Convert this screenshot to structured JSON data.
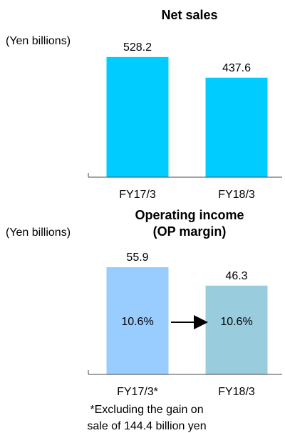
{
  "chart_data": [
    {
      "type": "bar",
      "title": "Net sales",
      "ylabel": "(Yen billions)",
      "categories": [
        "FY17/3",
        "FY18/3"
      ],
      "values": [
        528.2,
        437.6
      ],
      "colors": [
        "#00ccff",
        "#00ccff"
      ],
      "ylim": [
        0,
        600
      ]
    },
    {
      "type": "bar",
      "title": "Operating income",
      "subtitle": "(OP margin)",
      "ylabel": "(Yen billions)",
      "categories": [
        "FY17/3*",
        "FY18/3"
      ],
      "values": [
        55.9,
        46.3
      ],
      "margins": [
        10.6,
        10.6
      ],
      "margin_labels": [
        "10.6%",
        "10.6%"
      ],
      "colors": [
        "#99ccff",
        "#99ccdd"
      ],
      "ylim": [
        0,
        60
      ],
      "note": [
        "*Excluding the gain on",
        "sale of 144.4 billion yen"
      ]
    }
  ]
}
